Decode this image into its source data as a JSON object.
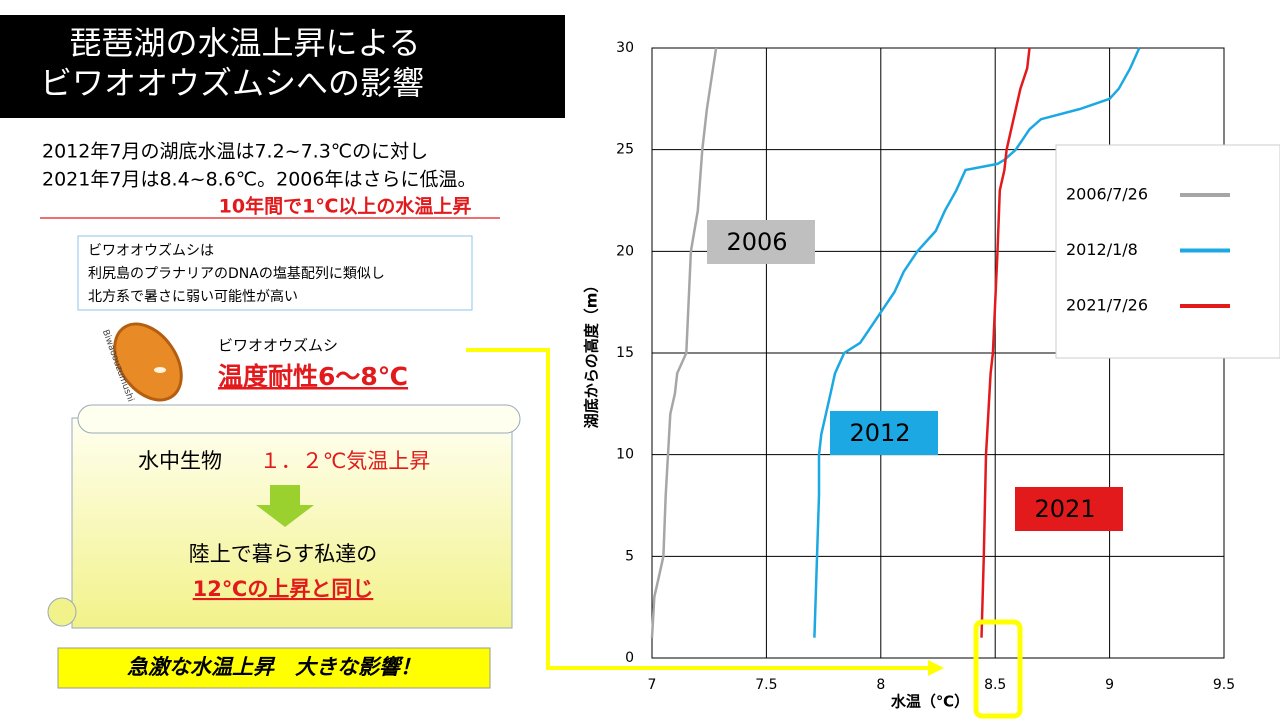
{
  "title": [
    "琵琶湖の水温上昇による",
    "ビワオオウズムシへの影響"
  ],
  "summary": {
    "lines": [
      "2012年7月の湖底水温は7.2~7.3℃のに対し",
      "2021年7月は8.4~8.6℃。2006年はさらに低温。"
    ],
    "highlight": "10年間で1℃以上の水温上昇"
  },
  "note": [
    "ビワオオウズムシは",
    "利尻島のプラナリアのDNAの塩基配列に類似し",
    "北方系で暑さに弱い可能性が高い"
  ],
  "species": {
    "image_label": "Biwaoouzumushi",
    "name": "ビワオオウズムシ",
    "tolerance": "温度耐性6～8℃"
  },
  "scroll": {
    "organism": "水中生物",
    "rise": "１．２℃気温上昇",
    "line2": "陸上で暮らす私達の",
    "line3": "12℃の上昇と同じ"
  },
  "conclusion": "急激な水温上昇　大きな影響！",
  "chart_data": {
    "type": "line",
    "xlabel": "水温（℃）",
    "ylabel": "湖底からの高度（m）",
    "xlim": [
      7,
      9.5
    ],
    "xticks": [
      7,
      7.5,
      8,
      8.5,
      9,
      9.5
    ],
    "ylim": [
      0,
      30
    ],
    "yticks": [
      0,
      5,
      10,
      15,
      20,
      25,
      30
    ],
    "grid": true,
    "legend": "upper right",
    "series": [
      {
        "name": "2006/7/26",
        "color": "#a6a6a6",
        "x": [
          7.0,
          7.01,
          7.03,
          7.05,
          7.06,
          7.07,
          7.08,
          7.1,
          7.11,
          7.15,
          7.17,
          7.2,
          7.22,
          7.24,
          7.26,
          7.28
        ],
        "values": [
          1,
          3,
          4,
          5,
          8,
          10,
          12,
          13,
          14,
          15,
          20,
          22,
          25,
          27,
          28.5,
          30
        ]
      },
      {
        "name": "2012/1/8",
        "color": "#1ca8e3",
        "x": [
          7.71,
          7.73,
          7.73,
          7.74,
          7.76,
          7.78,
          7.8,
          7.84,
          7.91,
          8.0,
          8.06,
          8.1,
          8.16,
          8.24,
          8.28,
          8.33,
          8.35,
          8.37,
          8.51,
          8.54,
          8.59,
          8.65,
          8.7,
          8.87,
          9.0,
          9.04,
          9.09,
          9.13
        ],
        "values": [
          1,
          8,
          10,
          11,
          12,
          13,
          14,
          15,
          15.5,
          17,
          18,
          19,
          20,
          21,
          22,
          23,
          23.5,
          24,
          24.3,
          24.5,
          25,
          26,
          26.5,
          27,
          27.5,
          28,
          29,
          30
        ]
      },
      {
        "name": "2021/7/26",
        "color": "#e31a1c",
        "x": [
          8.44,
          8.45,
          8.46,
          8.48,
          8.49,
          8.51,
          8.52,
          8.54,
          8.55,
          8.57,
          8.59,
          8.61,
          8.64,
          8.65
        ],
        "values": [
          1,
          5,
          10,
          14,
          15,
          20,
          23,
          24,
          25,
          26,
          27,
          28,
          29,
          30
        ]
      }
    ],
    "annotations": [
      {
        "text": "2006",
        "color": "#bfbfbf"
      },
      {
        "text": "2012",
        "color": "#1ca8e3"
      },
      {
        "text": "2021",
        "color": "#e31a1c"
      }
    ]
  }
}
